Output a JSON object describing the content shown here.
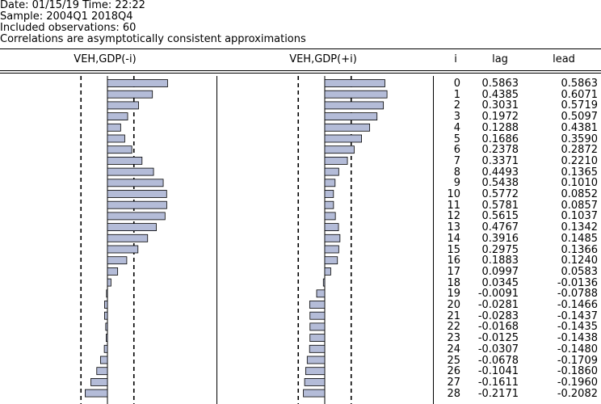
{
  "header": {
    "line1": "Date: 01/15/19   Time: 22:22",
    "line2": "Sample: 2004Q1 2018Q4",
    "line3": "Included observations: 60",
    "line4": "Correlations are asymptotically consistent approximations"
  },
  "columns": {
    "lag_chart": "VEH,GDP(-i)",
    "lead_chart": "VEH,GDP(+i)",
    "i": "i",
    "lag": "lag",
    "lead": "lead"
  },
  "rows": [
    {
      "i": "0",
      "lag": "0.5863",
      "lead": "0.5863"
    },
    {
      "i": "1",
      "lag": "0.4385",
      "lead": "0.6071"
    },
    {
      "i": "2",
      "lag": "0.3031",
      "lead": "0.5719"
    },
    {
      "i": "3",
      "lag": "0.1972",
      "lead": "0.5097"
    },
    {
      "i": "4",
      "lag": "0.1288",
      "lead": "0.4381"
    },
    {
      "i": "5",
      "lag": "0.1686",
      "lead": "0.3590"
    },
    {
      "i": "6",
      "lag": "0.2378",
      "lead": "0.2872"
    },
    {
      "i": "7",
      "lag": "0.3371",
      "lead": "0.2210"
    },
    {
      "i": "8",
      "lag": "0.4493",
      "lead": "0.1365"
    },
    {
      "i": "9",
      "lag": "0.5438",
      "lead": "0.1010"
    },
    {
      "i": "10",
      "lag": "0.5772",
      "lead": "0.0852"
    },
    {
      "i": "11",
      "lag": "0.5781",
      "lead": "0.0857"
    },
    {
      "i": "12",
      "lag": "0.5615",
      "lead": "0.1037"
    },
    {
      "i": "13",
      "lag": "0.4767",
      "lead": "0.1342"
    },
    {
      "i": "14",
      "lag": "0.3916",
      "lead": "0.1485"
    },
    {
      "i": "15",
      "lag": "0.2975",
      "lead": "0.1366"
    },
    {
      "i": "16",
      "lag": "0.1883",
      "lead": "0.1240"
    },
    {
      "i": "17",
      "lag": "0.0997",
      "lead": "0.0583"
    },
    {
      "i": "18",
      "lag": "0.0345",
      "lead": "-0.0136"
    },
    {
      "i": "19",
      "lag": "-0.0091",
      "lead": "-0.0788"
    },
    {
      "i": "20",
      "lag": "-0.0281",
      "lead": "-0.1466"
    },
    {
      "i": "21",
      "lag": "-0.0283",
      "lead": "-0.1437"
    },
    {
      "i": "22",
      "lag": "-0.0168",
      "lead": "-0.1435"
    },
    {
      "i": "23",
      "lag": "-0.0125",
      "lead": "-0.1438"
    },
    {
      "i": "24",
      "lag": "-0.0307",
      "lead": "-0.1480"
    },
    {
      "i": "25",
      "lag": "-0.0678",
      "lead": "-0.1709"
    },
    {
      "i": "26",
      "lag": "-0.1041",
      "lead": "-0.1860"
    },
    {
      "i": "27",
      "lag": "-0.1611",
      "lead": "-0.1960"
    },
    {
      "i": "28",
      "lag": "-0.2171",
      "lead": "-0.2082"
    }
  ],
  "chart_data": [
    {
      "type": "bar",
      "orientation": "horizontal",
      "title": "VEH,GDP(-i)",
      "categories": [
        "0",
        "1",
        "2",
        "3",
        "4",
        "5",
        "6",
        "7",
        "8",
        "9",
        "10",
        "11",
        "12",
        "13",
        "14",
        "15",
        "16",
        "17",
        "18",
        "19",
        "20",
        "21",
        "22",
        "23",
        "24",
        "25",
        "26",
        "27",
        "28"
      ],
      "values": [
        0.5863,
        0.4385,
        0.3031,
        0.1972,
        0.1288,
        0.1686,
        0.2378,
        0.3371,
        0.4493,
        0.5438,
        0.5772,
        0.5781,
        0.5615,
        0.4767,
        0.3916,
        0.2975,
        0.1883,
        0.0997,
        0.0345,
        -0.0091,
        -0.0281,
        -0.0283,
        -0.0168,
        -0.0125,
        -0.0307,
        -0.0678,
        -0.1041,
        -0.1611,
        -0.2171
      ],
      "confidence_band": [
        -0.258,
        0.258
      ]
    },
    {
      "type": "bar",
      "orientation": "horizontal",
      "title": "VEH,GDP(+i)",
      "categories": [
        "0",
        "1",
        "2",
        "3",
        "4",
        "5",
        "6",
        "7",
        "8",
        "9",
        "10",
        "11",
        "12",
        "13",
        "14",
        "15",
        "16",
        "17",
        "18",
        "19",
        "20",
        "21",
        "22",
        "23",
        "24",
        "25",
        "26",
        "27",
        "28"
      ],
      "values": [
        0.5863,
        0.6071,
        0.5719,
        0.5097,
        0.4381,
        0.359,
        0.2872,
        0.221,
        0.1365,
        0.101,
        0.0852,
        0.0857,
        0.1037,
        0.1342,
        0.1485,
        0.1366,
        0.124,
        0.0583,
        -0.0136,
        -0.0788,
        -0.1466,
        -0.1437,
        -0.1435,
        -0.1438,
        -0.148,
        -0.1709,
        -0.186,
        -0.196,
        -0.2082
      ],
      "confidence_band": [
        -0.258,
        0.258
      ]
    }
  ],
  "colors": {
    "bar_fill": "#b4bcd8",
    "bar_stroke": "#000000"
  }
}
